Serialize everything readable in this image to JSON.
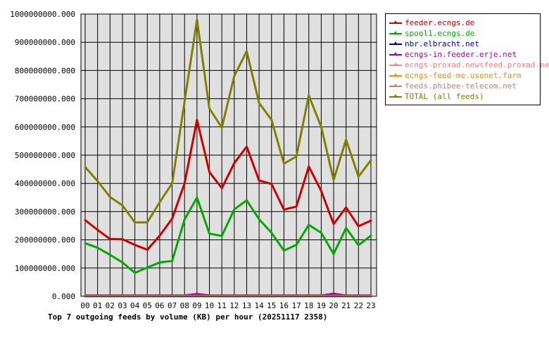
{
  "chart_data": {
    "type": "line",
    "title": "Top 7 outgoing feeds by volume (KB) per hour (20251117 2358)",
    "xlabel": "",
    "ylabel": "",
    "categories": [
      "00",
      "01",
      "02",
      "03",
      "04",
      "05",
      "06",
      "07",
      "08",
      "09",
      "10",
      "11",
      "12",
      "13",
      "14",
      "15",
      "16",
      "17",
      "18",
      "19",
      "20",
      "21",
      "22",
      "23"
    ],
    "ylim": [
      0,
      1000000000
    ],
    "yticks": [
      "0.000",
      "100000000.000",
      "200000000.000",
      "300000000.000",
      "400000000.000",
      "500000000.000",
      "600000000.000",
      "700000000.000",
      "800000000.000",
      "900000000.000",
      "1000000000.000"
    ],
    "grid": true,
    "legend_position": "right",
    "series": [
      {
        "name": "feeder.ecngs.de",
        "color": "#cc0000",
        "values": [
          270000000,
          235000000,
          203000000,
          202000000,
          182000000,
          165000000,
          215000000,
          275000000,
          400000000,
          625000000,
          440000000,
          383000000,
          472000000,
          530000000,
          410000000,
          398000000,
          307000000,
          318000000,
          460000000,
          373000000,
          256000000,
          315000000,
          248000000,
          268000000
        ]
      },
      {
        "name": "spool1.ecngs.de",
        "color": "#00aa00",
        "values": [
          188000000,
          172000000,
          147000000,
          120000000,
          83000000,
          102000000,
          120000000,
          125000000,
          272000000,
          350000000,
          222000000,
          214000000,
          308000000,
          340000000,
          273000000,
          225000000,
          162000000,
          182000000,
          253000000,
          225000000,
          150000000,
          242000000,
          181000000,
          215000000
        ]
      },
      {
        "name": "nbr.elbracht.net",
        "color": "#000099",
        "values": [
          0,
          0,
          0,
          0,
          0,
          0,
          0,
          0,
          0,
          0,
          0,
          0,
          0,
          0,
          0,
          0,
          0,
          0,
          0,
          0,
          0,
          0,
          0,
          0
        ]
      },
      {
        "name": "ecngs-in.feeder.erje.net",
        "color": "#aa00aa",
        "values": [
          3000000,
          3000000,
          3000000,
          3000000,
          3000000,
          3000000,
          3000000,
          3000000,
          3000000,
          8000000,
          3000000,
          3000000,
          3000000,
          3000000,
          3000000,
          3000000,
          3000000,
          3000000,
          3000000,
          3000000,
          9000000,
          3000000,
          3000000,
          3000000
        ]
      },
      {
        "name": "ecngs-proxad.newsfeed.proxad.net",
        "color": "#ff8080",
        "values": [
          1000000,
          1000000,
          1000000,
          1000000,
          1000000,
          1000000,
          1000000,
          1000000,
          1000000,
          1000000,
          1000000,
          1000000,
          1000000,
          1000000,
          1000000,
          1000000,
          1000000,
          1000000,
          1000000,
          1000000,
          1000000,
          1000000,
          1000000,
          1000000
        ]
      },
      {
        "name": "ecngs-feed-me.usenet.farm",
        "color": "#ff8800",
        "values": [
          1000000,
          1000000,
          1000000,
          1000000,
          1000000,
          1000000,
          1000000,
          1000000,
          1000000,
          1000000,
          1000000,
          1000000,
          1000000,
          1000000,
          1000000,
          1000000,
          1000000,
          1000000,
          1000000,
          1000000,
          1000000,
          1000000,
          1000000,
          1000000
        ]
      },
      {
        "name": "feeds.phibee-telecom.net",
        "color": "#c08080",
        "values": [
          1000000,
          1000000,
          1000000,
          1000000,
          1000000,
          1000000,
          1000000,
          1000000,
          1000000,
          1000000,
          1000000,
          1000000,
          1000000,
          1000000,
          1000000,
          1000000,
          1000000,
          1000000,
          1000000,
          1000000,
          1000000,
          1000000,
          1000000,
          1000000
        ]
      },
      {
        "name": "TOTAL (all feeds)",
        "color": "#808000",
        "values": [
          458000000,
          408000000,
          352000000,
          322000000,
          262000000,
          262000000,
          333000000,
          400000000,
          690000000,
          980000000,
          665000000,
          598000000,
          780000000,
          868000000,
          685000000,
          625000000,
          470000000,
          495000000,
          712000000,
          600000000,
          412000000,
          555000000,
          424000000,
          482000000
        ]
      }
    ]
  }
}
